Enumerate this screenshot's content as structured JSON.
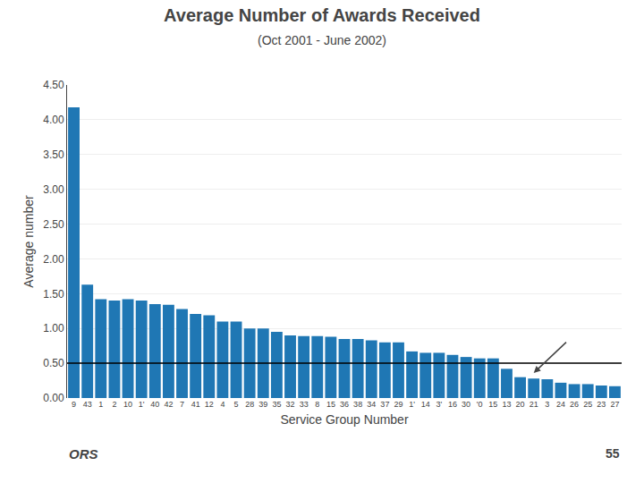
{
  "chart_data": {
    "type": "bar",
    "title": "Average Number of Awards Received",
    "subtitle": "(Oct 2001 - June 2002)",
    "xlabel": "Service Group Number",
    "ylabel": "Average number",
    "categories": [
      "9",
      "43",
      "1",
      "2",
      "10",
      "1'",
      "40",
      "42",
      "7",
      "41",
      "12",
      "4",
      "5",
      "28",
      "39",
      "35",
      "32",
      "33",
      "8",
      "15",
      "36",
      "38",
      "34",
      "37",
      "29",
      "1'",
      "14",
      "3'",
      "16",
      "30",
      "'0",
      "15",
      "13",
      "20",
      "21",
      "3",
      "24",
      "26",
      "25",
      "23",
      "27"
    ],
    "values": [
      4.18,
      1.63,
      1.42,
      1.4,
      1.42,
      1.4,
      1.35,
      1.34,
      1.28,
      1.21,
      1.19,
      1.1,
      1.1,
      1.0,
      1.0,
      0.95,
      0.9,
      0.89,
      0.89,
      0.88,
      0.85,
      0.85,
      0.83,
      0.8,
      0.8,
      0.67,
      0.65,
      0.65,
      0.62,
      0.59,
      0.57,
      0.57,
      0.42,
      0.3,
      0.28,
      0.27,
      0.22,
      0.2,
      0.2,
      0.18,
      0.17
    ],
    "ylim": [
      0,
      4.5
    ],
    "yticks": [
      {
        "value": 0,
        "label": "0.00"
      },
      {
        "value": 0.5,
        "label": "0.50"
      },
      {
        "value": 1,
        "label": "1.00"
      },
      {
        "value": 1.5,
        "label": "1.50"
      },
      {
        "value": 2,
        "label": "2.00"
      },
      {
        "value": 2.5,
        "label": "2.50"
      },
      {
        "value": 3,
        "label": "3.00"
      },
      {
        "value": 3.5,
        "label": "3.50"
      },
      {
        "value": 4,
        "label": "4.00"
      },
      {
        "value": 4.5,
        "label": "4.50"
      }
    ],
    "grid": true,
    "hline": 0.5,
    "annotations": [
      {
        "x": 34,
        "y": 0.36,
        "from_x": 36.5,
        "from_y": 0.82
      }
    ],
    "page_number": "55",
    "logo_text": "ORS"
  }
}
